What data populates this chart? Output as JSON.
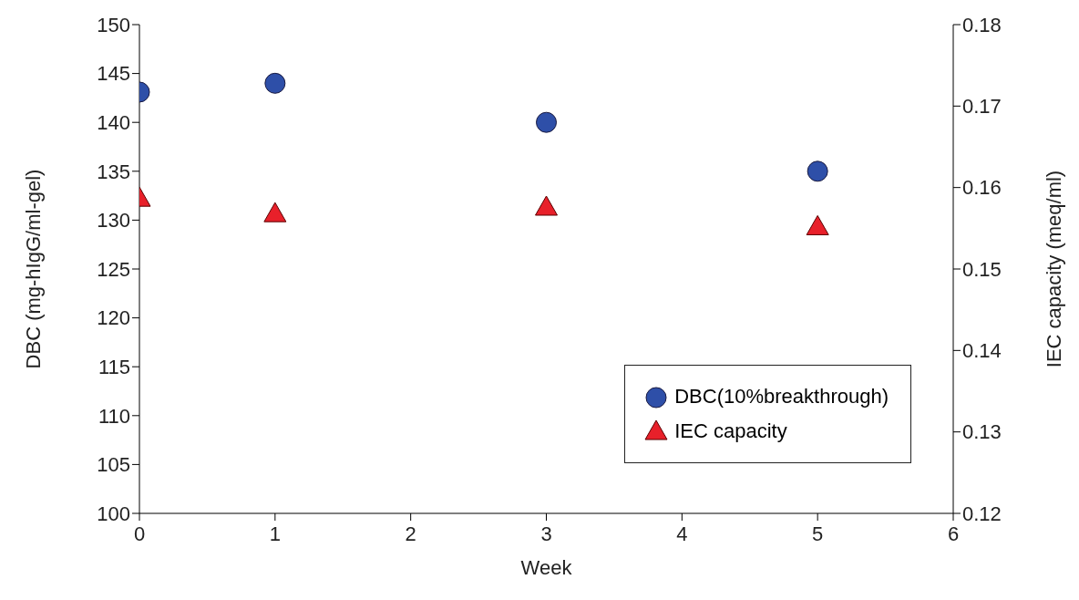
{
  "chart_data": {
    "type": "scatter",
    "xlabel": "Week",
    "ylabel": "DBC (mg-hIgG/ml-gel)",
    "y2label": "IEC capacity (meq/ml)",
    "xlim": [
      0,
      6
    ],
    "xticks": [
      0,
      1,
      2,
      3,
      4,
      5,
      6
    ],
    "ylim": [
      100,
      150
    ],
    "yticks": [
      100,
      105,
      110,
      115,
      120,
      125,
      130,
      135,
      140,
      145,
      150
    ],
    "y2lim": [
      0.12,
      0.18
    ],
    "y2ticks": [
      {
        "value": 0.12,
        "label": "0.12"
      },
      {
        "value": 0.13,
        "label": "0.13"
      },
      {
        "value": 0.14,
        "label": "0.14"
      },
      {
        "value": 0.15,
        "label": "0.15"
      },
      {
        "value": 0.16,
        "label": "0.16"
      },
      {
        "value": 0.17,
        "label": "0.17"
      },
      {
        "value": 0.18,
        "label": "0.18"
      }
    ],
    "x": [
      0,
      1,
      3,
      5
    ],
    "grid": false,
    "legend": "bottom right",
    "series": [
      {
        "name": "DBC(10%breakthrough)",
        "color": "#2e4fa8",
        "marker": "circle",
        "values": [
          143.1,
          144.0,
          140.0,
          135.0
        ]
      },
      {
        "name": "IEC capacity",
        "color": "#e8202a",
        "marker": "triangle",
        "axis": "y2",
        "values": [
          0.1586,
          0.1567,
          0.1575,
          0.1551
        ]
      }
    ]
  }
}
